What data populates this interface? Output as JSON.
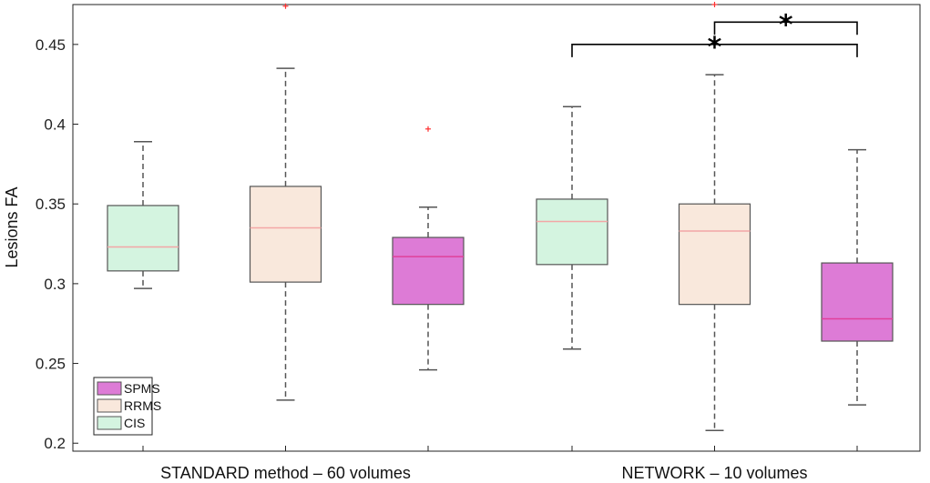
{
  "chart_data": {
    "type": "box",
    "ylabel": "Lesions FA",
    "ylim": [
      0.195,
      0.475
    ],
    "yticks": [
      0.2,
      0.25,
      0.3,
      0.35,
      0.4,
      0.45
    ],
    "ytick_labels": [
      "0.2",
      "0.25",
      "0.3",
      "0.35",
      "0.4",
      "0.45"
    ],
    "groups": [
      "STANDARD method – 60 volumes",
      "NETWORK – 10 volumes"
    ],
    "series": [
      {
        "name": "CIS",
        "color": "#d4f4e0",
        "median_color": "#f3a6a6",
        "boxes": [
          {
            "group": 0,
            "whisker_low": 0.297,
            "q1": 0.308,
            "median": 0.323,
            "q3": 0.349,
            "whisker_high": 0.389,
            "outliers": []
          },
          {
            "group": 1,
            "whisker_low": 0.259,
            "q1": 0.312,
            "median": 0.339,
            "q3": 0.353,
            "whisker_high": 0.411,
            "outliers": []
          }
        ]
      },
      {
        "name": "RRMS",
        "color": "#f9e8dc",
        "median_color": "#f3a6a6",
        "boxes": [
          {
            "group": 0,
            "whisker_low": 0.227,
            "q1": 0.301,
            "median": 0.335,
            "q3": 0.361,
            "whisker_high": 0.435,
            "outliers": [
              0.474
            ]
          },
          {
            "group": 1,
            "whisker_low": 0.208,
            "q1": 0.287,
            "median": 0.333,
            "q3": 0.35,
            "whisker_high": 0.431,
            "outliers": [
              0.452,
              0.475
            ]
          }
        ]
      },
      {
        "name": "SPMS",
        "color": "#dd7bd6",
        "median_color": "#e0409a",
        "boxes": [
          {
            "group": 0,
            "whisker_low": 0.246,
            "q1": 0.287,
            "median": 0.317,
            "q3": 0.329,
            "whisker_high": 0.348,
            "outliers": [
              0.397
            ]
          },
          {
            "group": 1,
            "whisker_low": 0.224,
            "q1": 0.264,
            "median": 0.278,
            "q3": 0.313,
            "whisker_high": 0.384,
            "outliers": []
          }
        ]
      }
    ],
    "legend": {
      "position": "bottom-left",
      "order": [
        "SPMS",
        "RRMS",
        "CIS"
      ]
    },
    "significance": [
      {
        "from_series": "CIS",
        "from_group": 1,
        "to_series": "SPMS",
        "to_group": 1,
        "y": 0.45,
        "label": "*"
      },
      {
        "from_series": "RRMS",
        "from_group": 1,
        "to_series": "SPMS",
        "to_group": 1,
        "y": 0.464,
        "label": "*"
      }
    ]
  }
}
